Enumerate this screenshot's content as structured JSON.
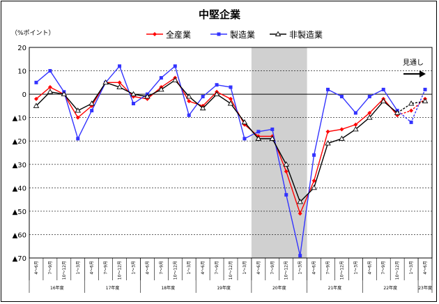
{
  "chart_data": {
    "type": "line",
    "title": "中堅企業",
    "ylabel": "（%ポイント）",
    "ylim": [
      -70,
      20
    ],
    "yticks": [
      {
        "v": 20,
        "label": "20"
      },
      {
        "v": 10,
        "label": "10"
      },
      {
        "v": 0,
        "label": "0"
      },
      {
        "v": -10,
        "label": "▲10"
      },
      {
        "v": -20,
        "label": "▲20"
      },
      {
        "v": -30,
        "label": "▲30"
      },
      {
        "v": -40,
        "label": "▲40"
      },
      {
        "v": -50,
        "label": "▲50"
      },
      {
        "v": -60,
        "label": "▲60"
      },
      {
        "v": -70,
        "label": "▲70"
      }
    ],
    "grid": true,
    "legend": "top",
    "categories": [
      "4～6月",
      "7～9月",
      "10～12月",
      "1～3月",
      "4～6月",
      "7～9月",
      "10～12月",
      "1～3月",
      "4～6月",
      "7～9月",
      "10～12月",
      "1～3月",
      "4～6月",
      "7～9月",
      "10～12月",
      "1～3月",
      "4～6月",
      "7～9月",
      "10～12月",
      "1～3月",
      "4～6月",
      "7～9月",
      "10～12月",
      "1～3月",
      "4～6月",
      "7～9月",
      "10～12月",
      "1～3月",
      "4～6月"
    ],
    "years": [
      {
        "label": "16年度",
        "start": 0,
        "end": 3
      },
      {
        "label": "17年度",
        "start": 4,
        "end": 7
      },
      {
        "label": "18年度",
        "start": 8,
        "end": 11
      },
      {
        "label": "19年度",
        "start": 12,
        "end": 15
      },
      {
        "label": "20年度",
        "start": 16,
        "end": 19
      },
      {
        "label": "21年度",
        "start": 20,
        "end": 23
      },
      {
        "label": "22年度",
        "start": 24,
        "end": 27
      },
      {
        "label": "23年度",
        "start": 28,
        "end": 28
      }
    ],
    "shaded_range": [
      16,
      19
    ],
    "forecast_from": 26,
    "forecast_label": "見通し",
    "series": [
      {
        "name": "全産業",
        "color": "#ff0000",
        "marker": "diamond",
        "values": [
          -2,
          3,
          0,
          -10,
          -5,
          5,
          5,
          -1,
          -2,
          3,
          7,
          -3,
          -5,
          1,
          -2,
          -13,
          -18,
          -18,
          -33,
          -51,
          -37,
          -16,
          -15,
          -13,
          -8,
          -2,
          -9,
          -7,
          -2
        ]
      },
      {
        "name": "製造業",
        "color": "#3333ff",
        "marker": "square",
        "values": [
          5,
          10,
          1,
          -19,
          -7,
          5,
          12,
          -4,
          0,
          7,
          12,
          -9,
          -1,
          4,
          3,
          -19,
          -16,
          -15,
          -43,
          -69,
          -26,
          2,
          -1,
          -8,
          -1,
          2,
          -7,
          -12,
          2
        ]
      },
      {
        "name": "非製造業",
        "color": "#000000",
        "marker": "triangle",
        "values": [
          -5,
          1,
          0,
          -7,
          -4,
          5,
          3,
          0,
          -1,
          2,
          6,
          -1,
          -6,
          0,
          -4,
          -12,
          -19,
          -19,
          -30,
          -46,
          -40,
          -21,
          -19,
          -15,
          -10,
          -3,
          -8,
          -4,
          -3
        ]
      }
    ]
  }
}
